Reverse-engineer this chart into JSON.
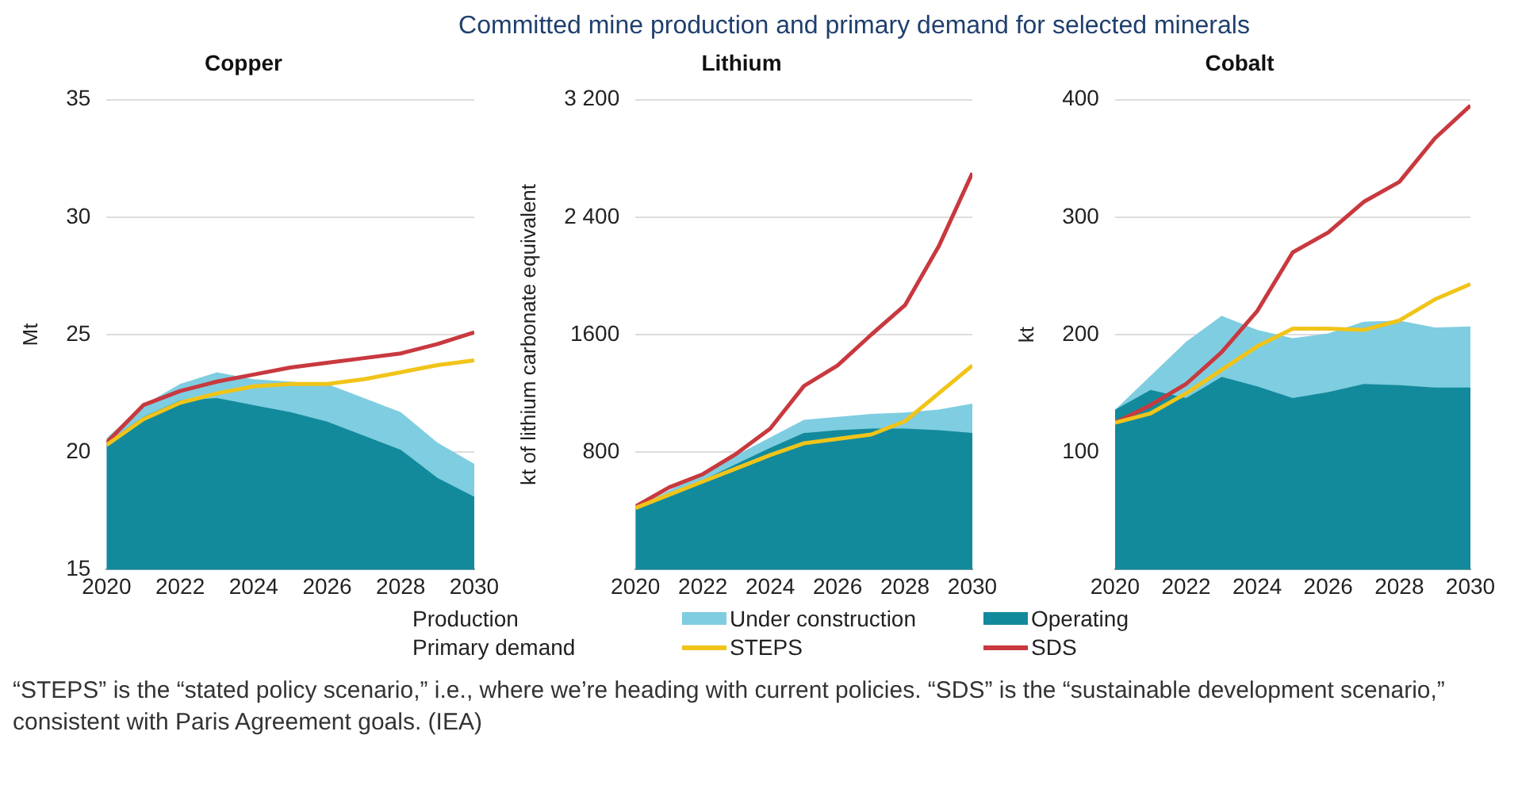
{
  "chart_data": [
    {
      "type": "area",
      "title": "Copper",
      "ylabel": "Mt",
      "x": [
        2020,
        2021,
        2022,
        2023,
        2024,
        2025,
        2026,
        2027,
        2028,
        2029,
        2030
      ],
      "xlim": [
        2020,
        2030
      ],
      "xticks": [
        2020,
        2022,
        2024,
        2026,
        2028,
        2030
      ],
      "ylim": [
        15,
        35
      ],
      "yticks": [
        15,
        20,
        25,
        30,
        35
      ],
      "grid": "y",
      "annotations": [
        "Committed mine production and primary demand for selected minerals",
        "“STEPS” is the “stated policy scenario,” i.e., where we’re heading with current policies. “SDS” is the “sustainable development scenario,” consistent with Paris Agreement goals. (IEA)"
      ],
      "series": [
        {
          "type": "area",
          "color": "#7fcde0",
          "values": [
            20.6,
            22.0,
            22.9,
            23.4,
            23.1,
            23.0,
            22.9,
            22.3,
            21.7,
            20.4,
            19.5
          ]
        },
        {
          "type": "area",
          "color": "#138a9c",
          "values": [
            20.4,
            21.5,
            22.2,
            22.3,
            22.0,
            21.7,
            21.3,
            20.7,
            20.1,
            18.9,
            18.1
          ]
        },
        {
          "type": "line",
          "color": "#f0c419",
          "values": [
            20.3,
            21.4,
            22.1,
            22.5,
            22.8,
            22.9,
            22.9,
            23.1,
            23.4,
            23.7,
            23.9
          ]
        },
        {
          "type": "line",
          "color": "#c8393f",
          "values": [
            20.4,
            22.0,
            22.6,
            23.0,
            23.3,
            23.6,
            23.8,
            24.0,
            24.2,
            24.6,
            25.1
          ]
        }
      ]
    },
    {
      "type": "area",
      "title": "Lithium",
      "ylabel": "kt of lithium carbonate equivalent",
      "x": [
        2020,
        2021,
        2022,
        2023,
        2024,
        2025,
        2026,
        2027,
        2028,
        2029,
        2030
      ],
      "xlim": [
        2020,
        2030
      ],
      "xticks": [
        2020,
        2022,
        2024,
        2026,
        2028,
        2030
      ],
      "ylim": [
        0,
        3200
      ],
      "yticks": [
        800,
        1600,
        {
          "value": 2400,
          "label": "2 400"
        },
        {
          "value": 3200,
          "label": "3 200"
        }
      ],
      "grid": "y",
      "legend": "bottom",
      "annotations": [
        "Production",
        "Primary demand"
      ],
      "series": [
        {
          "type": "area",
          "name": "Under construction",
          "color": "#7fcde0",
          "values": [
            420,
            null,
            null,
            null,
            null,
            1020,
            1040,
            1060,
            1070,
            1090,
            1130
          ]
        },
        {
          "type": "area",
          "name": "Operating",
          "color": "#138a9c",
          "values": [
            420,
            510,
            610,
            720,
            830,
            930,
            950,
            960,
            960,
            950,
            930
          ]
        },
        {
          "type": "line",
          "name": "STEPS",
          "color": "#f0c419",
          "values": [
            420,
            510,
            600,
            690,
            780,
            860,
            890,
            920,
            1010,
            1200,
            1390
          ]
        },
        {
          "type": "line",
          "name": "SDS",
          "color": "#c8393f",
          "values": [
            430,
            560,
            650,
            790,
            960,
            1250,
            1390,
            1600,
            1800,
            2200,
            2700
          ]
        }
      ]
    },
    {
      "type": "area",
      "title": "Cobalt",
      "ylabel": "kt",
      "x": [
        2020,
        2021,
        2022,
        2023,
        2024,
        2025,
        2026,
        2027,
        2028,
        2029,
        2030
      ],
      "xlim": [
        2020,
        2030
      ],
      "xticks": [
        2020,
        2022,
        2024,
        2026,
        2028,
        2030
      ],
      "ylim": [
        0,
        400
      ],
      "yticks": [
        100,
        200,
        300,
        400
      ],
      "grid": "y",
      "series": [
        {
          "type": "area",
          "color": "#7fcde0",
          "values": [
            136,
            null,
            194,
            216,
            204,
            197,
            201,
            211,
            212,
            206,
            207
          ]
        },
        {
          "type": "area",
          "color": "#138a9c",
          "values": [
            136,
            153,
            146,
            164,
            156,
            146,
            151,
            158,
            157,
            155,
            155
          ]
        },
        {
          "type": "line",
          "color": "#f0c419",
          "values": [
            125,
            133,
            150,
            170,
            190,
            205,
            205,
            204,
            212,
            230,
            243
          ]
        },
        {
          "type": "line",
          "color": "#c8393f",
          "values": [
            125,
            140,
            158,
            185,
            220,
            270,
            287,
            313,
            330,
            367,
            395
          ]
        }
      ]
    }
  ]
}
